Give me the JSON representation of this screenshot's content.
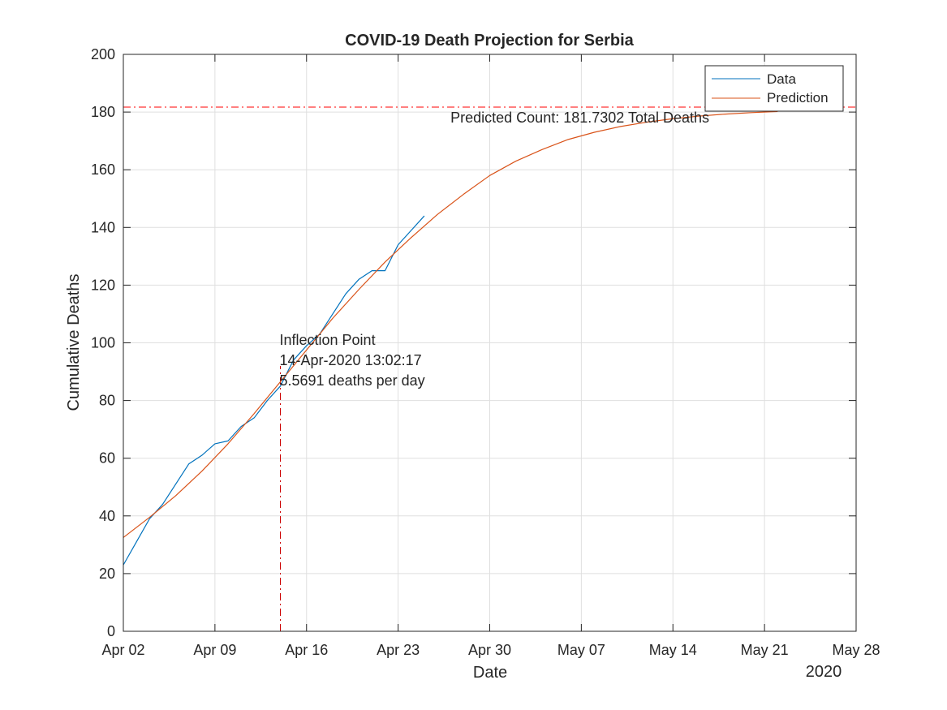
{
  "chart_data": {
    "type": "line",
    "title": "COVID-19 Death Projection for Serbia",
    "xlabel": "Date",
    "ylabel": "Cumulative Deaths",
    "x_year_label": "2020",
    "xlim": [
      "2020-04-02",
      "2020-05-28"
    ],
    "ylim": [
      0,
      200
    ],
    "x_ticks": [
      {
        "date": "2020-04-02",
        "label": "Apr 02"
      },
      {
        "date": "2020-04-09",
        "label": "Apr 09"
      },
      {
        "date": "2020-04-16",
        "label": "Apr 16"
      },
      {
        "date": "2020-04-23",
        "label": "Apr 23"
      },
      {
        "date": "2020-04-30",
        "label": "Apr 30"
      },
      {
        "date": "2020-05-07",
        "label": "May 07"
      },
      {
        "date": "2020-05-14",
        "label": "May 14"
      },
      {
        "date": "2020-05-21",
        "label": "May 21"
      },
      {
        "date": "2020-05-28",
        "label": "May 28"
      }
    ],
    "y_ticks": [
      0,
      20,
      40,
      60,
      80,
      100,
      120,
      140,
      160,
      180,
      200
    ],
    "grid": true,
    "legend": {
      "position": "top-right",
      "entries": [
        "Data",
        "Prediction"
      ]
    },
    "series": [
      {
        "name": "Data",
        "color": "#0072BD",
        "points": [
          [
            "2020-04-02",
            23
          ],
          [
            "2020-04-03",
            31
          ],
          [
            "2020-04-04",
            39
          ],
          [
            "2020-04-05",
            44
          ],
          [
            "2020-04-06",
            51
          ],
          [
            "2020-04-07",
            58
          ],
          [
            "2020-04-08",
            61
          ],
          [
            "2020-04-09",
            65
          ],
          [
            "2020-04-10",
            66
          ],
          [
            "2020-04-11",
            71
          ],
          [
            "2020-04-12",
            74
          ],
          [
            "2020-04-13",
            80
          ],
          [
            "2020-04-14",
            85
          ],
          [
            "2020-04-15",
            94
          ],
          [
            "2020-04-16",
            99
          ],
          [
            "2020-04-17",
            103
          ],
          [
            "2020-04-18",
            110
          ],
          [
            "2020-04-19",
            117
          ],
          [
            "2020-04-20",
            122
          ],
          [
            "2020-04-21",
            125
          ],
          [
            "2020-04-22",
            125
          ],
          [
            "2020-04-23",
            134
          ],
          [
            "2020-04-24",
            139
          ],
          [
            "2020-04-25",
            144
          ]
        ]
      },
      {
        "name": "Prediction",
        "color": "#D95319",
        "points": [
          [
            "2020-04-02",
            32.5
          ],
          [
            "2020-04-04",
            39.5
          ],
          [
            "2020-04-06",
            47
          ],
          [
            "2020-04-08",
            55.5
          ],
          [
            "2020-04-10",
            65
          ],
          [
            "2020-04-12",
            75.5
          ],
          [
            "2020-04-14",
            86.5
          ],
          [
            "2020-04-16",
            97.5
          ],
          [
            "2020-04-18",
            108.5
          ],
          [
            "2020-04-20",
            118.5
          ],
          [
            "2020-04-22",
            128
          ],
          [
            "2020-04-24",
            136.5
          ],
          [
            "2020-04-26",
            144.5
          ],
          [
            "2020-04-28",
            151.5
          ],
          [
            "2020-04-30",
            158
          ],
          [
            "2020-05-02",
            163
          ],
          [
            "2020-05-04",
            167
          ],
          [
            "2020-05-06",
            170.5
          ],
          [
            "2020-05-08",
            173
          ],
          [
            "2020-05-10",
            175
          ],
          [
            "2020-05-12",
            176.5
          ],
          [
            "2020-05-14",
            177.7
          ],
          [
            "2020-05-16",
            178.6
          ],
          [
            "2020-05-18",
            179.3
          ],
          [
            "2020-05-20",
            179.8
          ],
          [
            "2020-05-22",
            180.2
          ]
        ]
      }
    ],
    "reference_lines": {
      "predicted_total": {
        "y": 181.7302,
        "color": "#FF0000"
      },
      "inflection": {
        "date": "2020-04-14",
        "y": 92,
        "color": "#CC0000"
      }
    },
    "annotations": {
      "predicted_count": {
        "text": "Predicted Count: 181.7302 Total Deaths",
        "date": "2020-04-27",
        "y": 178
      },
      "inflection": {
        "lines": [
          "Inflection Point",
          "14-Apr-2020 13:02:17",
          "5.5691 deaths per day"
        ],
        "date": "2020-04-14",
        "y": 97
      }
    }
  }
}
